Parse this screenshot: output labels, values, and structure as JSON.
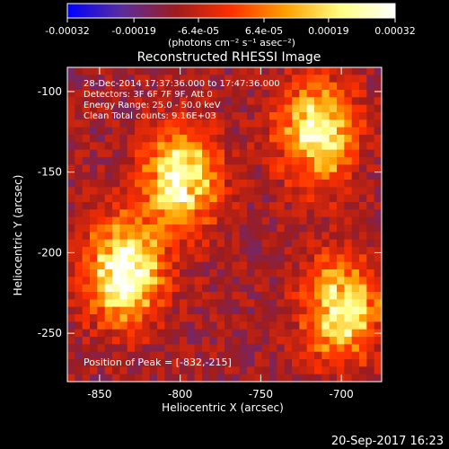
{
  "chart_data": {
    "type": "heatmap",
    "title": "Reconstructed RHESSI Image",
    "xlabel": "Heliocentric X (arcsec)",
    "ylabel": "Heliocentric Y (arcsec)",
    "xlim": [
      -870,
      -675
    ],
    "ylim": [
      -280,
      -85
    ],
    "x_ticks": [
      -850,
      -800,
      -750,
      -700
    ],
    "y_ticks": [
      -100,
      -150,
      -200,
      -250
    ],
    "colorbar": {
      "range": [
        -0.00032,
        0.00032
      ],
      "tick_values": [
        -0.00032,
        -0.00019,
        -6.4e-05,
        6.4e-05,
        0.00019,
        0.00032
      ],
      "tick_labels": [
        "-0.00032",
        "-0.00019",
        "-6.4e-05",
        "6.4e-05",
        "0.00019",
        "0.00032"
      ],
      "unit_label": "(photons cm⁻² s⁻¹ asec⁻²)",
      "colormap": [
        "#0000ff",
        "#5a2d9c",
        "#9e1c1c",
        "#ff3000",
        "#ffa000",
        "#ffff80",
        "#ffffff"
      ]
    },
    "info_lines": [
      "28-Dec-2014 17:37:36.000 to 17:47:36.000",
      "Detectors: 3F 6F 7F 9F, Att 0",
      "Energy Range: 25.0 - 50.0 keV",
      "Clean     Total counts: 9.16E+03"
    ],
    "peak_text": "Position of Peak = [-832,-215]",
    "peak": [
      -832,
      -215
    ],
    "sources": [
      {
        "x": -835,
        "y": -212,
        "peak": 0.00032
      },
      {
        "x": -800,
        "y": -155,
        "peak": 0.00027
      },
      {
        "x": -715,
        "y": -125,
        "peak": 0.00026
      },
      {
        "x": -700,
        "y": -235,
        "peak": 0.00025
      }
    ]
  },
  "footer_timestamp": "20-Sep-2017 16:23"
}
